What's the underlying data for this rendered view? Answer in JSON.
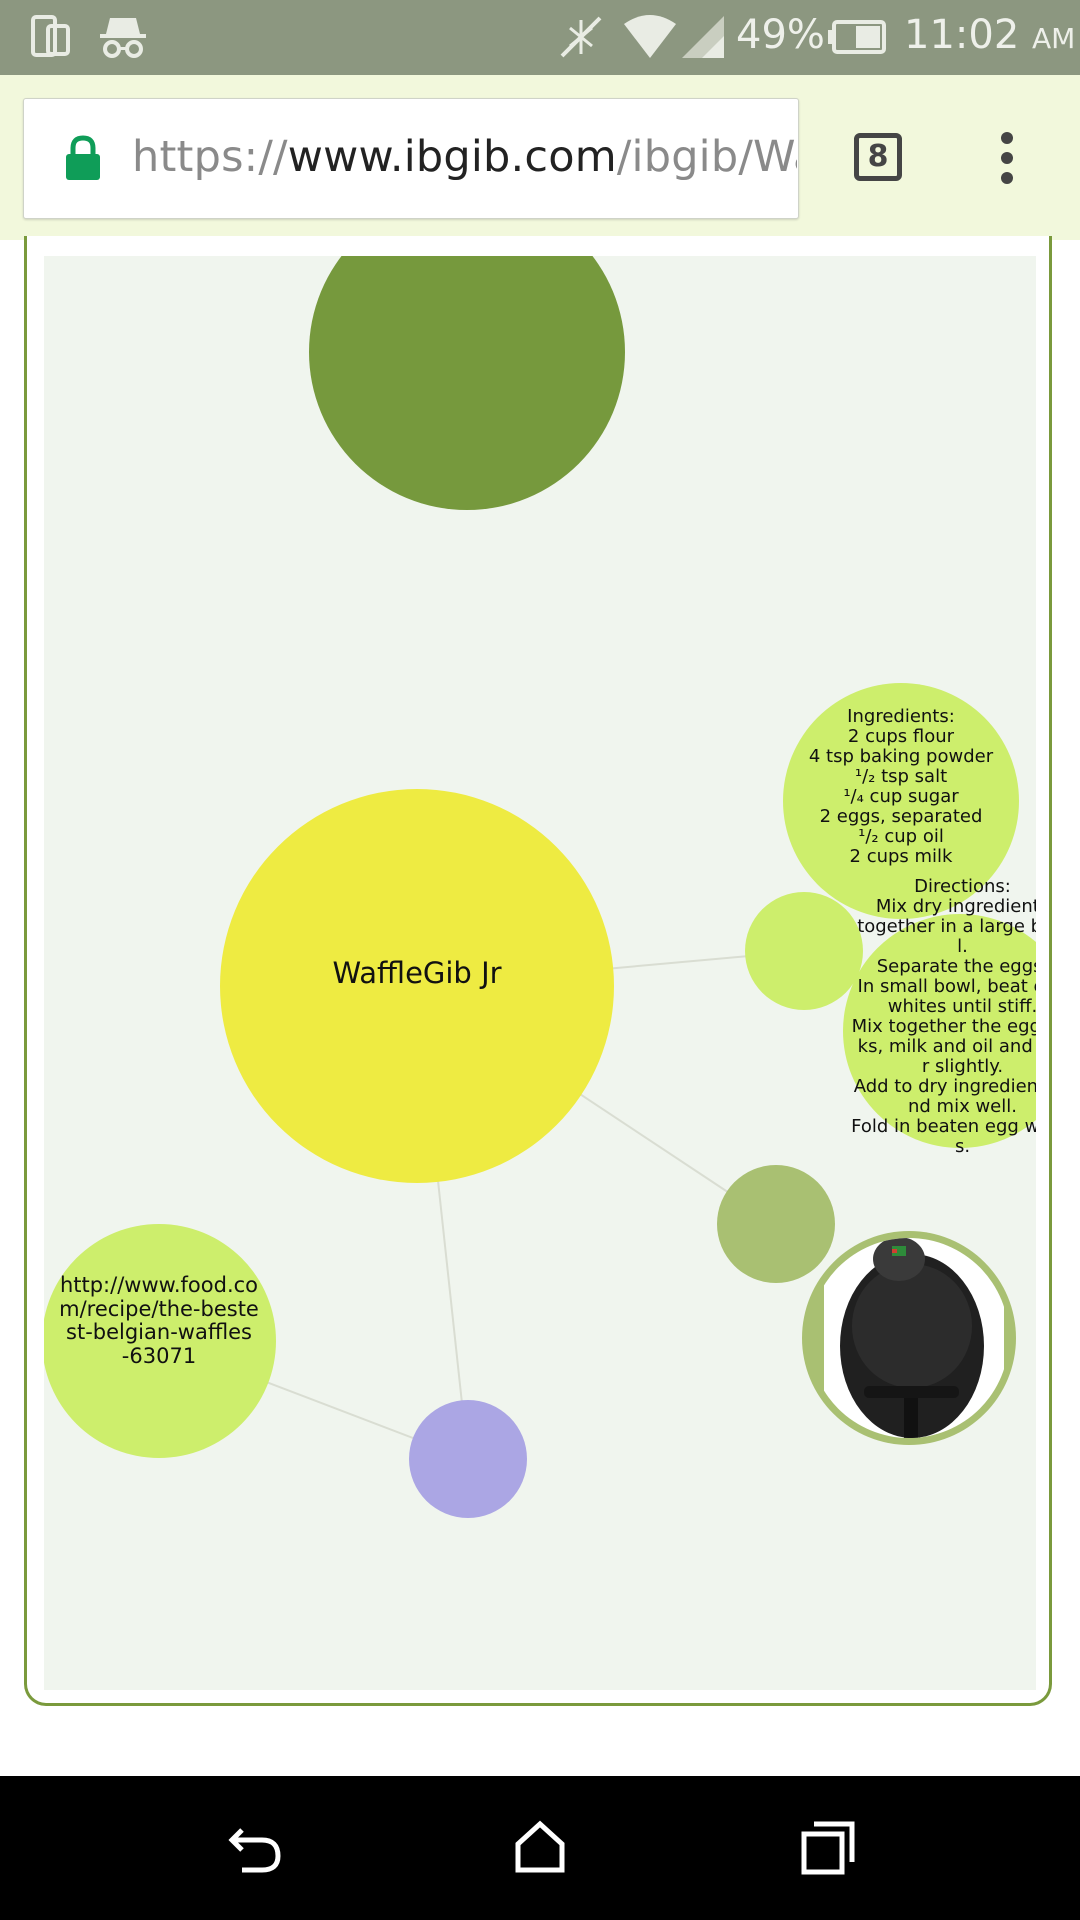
{
  "status_bar": {
    "battery_percent": "49%",
    "time": "11:02",
    "ampm": "AM",
    "icons": [
      "screen-cast-icon",
      "incognito-icon",
      "nfc-off-icon",
      "wifi-icon",
      "signal-icon",
      "battery-icon"
    ]
  },
  "browser": {
    "url_scheme": "https://",
    "url_domain": "www.ibgib.com",
    "url_path": "/ibgib/Waffle",
    "tab_count": "8",
    "accent_color": "#0f9d58"
  },
  "graph": {
    "root_label": "WaffleGib Jr",
    "ingredients_text": [
      "Ingredients:",
      "2 cups flour",
      "4 tsp baking powder",
      "¹/₂ tsp salt",
      "¹/₄ cup sugar",
      "2 eggs, separated",
      "¹/₂ cup oil",
      "2 cups milk"
    ],
    "directions_text": [
      "Directions:",
      "Mix dry ingredients",
      "together in a large bow",
      "l.",
      "Separate the eggs.",
      "In small bowl, beat egg",
      "whites until stiff.",
      "Mix together the egg yol",
      "ks, milk and oil and stir",
      "r slightly.",
      "Add to dry ingredients a",
      "nd mix well.",
      "Fold in beaten egg white",
      "s."
    ],
    "link_text": [
      "http://www.food.co",
      "m/recipe/the-beste",
      "st-belgian-waffles",
      "-63071"
    ],
    "node_colors": {
      "top": "#76993d",
      "root": "#eeeb42",
      "light_green": "#cdee6c",
      "olive": "#a9c072",
      "purple": "#aba6e4"
    },
    "image_caption": "waffle-maker"
  },
  "nav": {
    "buttons": [
      "back-icon",
      "home-icon",
      "recents-icon"
    ]
  }
}
